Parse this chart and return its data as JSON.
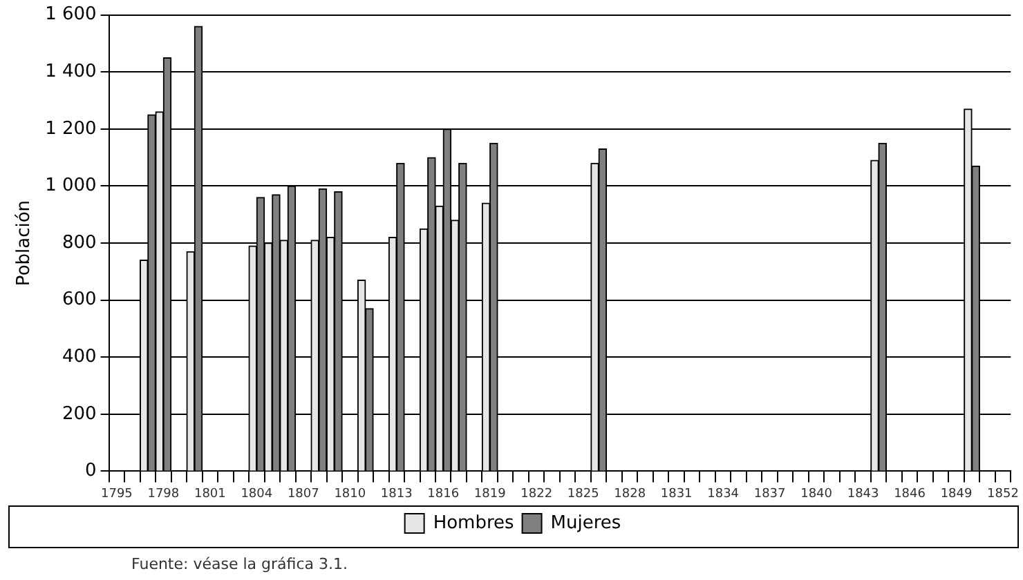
{
  "chart_data": {
    "type": "bar",
    "ylabel": "Población",
    "categories": [
      "1795",
      null,
      null,
      "1798",
      null,
      null,
      "1801",
      null,
      null,
      "1804",
      null,
      null,
      "1807",
      null,
      null,
      "1810",
      null,
      null,
      "1813",
      null,
      null,
      "1816",
      null,
      null,
      "1819",
      null,
      null,
      "1822",
      null,
      null,
      "1825",
      null,
      null,
      "1828",
      null,
      null,
      "1831",
      null,
      null,
      "1834",
      null,
      null,
      "1837",
      null,
      null,
      "1840",
      null,
      null,
      "1843",
      null,
      null,
      "1846",
      null,
      null,
      "1849",
      null,
      null,
      "1852"
    ],
    "series": [
      {
        "name": "Hombres",
        "color": "#e6e6e6",
        "values": [
          null,
          null,
          740,
          1260,
          null,
          770,
          null,
          null,
          null,
          790,
          800,
          810,
          null,
          810,
          820,
          null,
          670,
          null,
          820,
          null,
          850,
          930,
          880,
          null,
          940,
          null,
          null,
          null,
          null,
          null,
          null,
          1080,
          null,
          null,
          null,
          null,
          null,
          null,
          null,
          null,
          null,
          null,
          null,
          null,
          null,
          null,
          null,
          null,
          null,
          1090,
          null,
          null,
          null,
          null,
          null,
          1270,
          null,
          null
        ]
      },
      {
        "name": "Mujeres",
        "color": "#808080",
        "values": [
          null,
          null,
          1250,
          1450,
          null,
          1560,
          null,
          null,
          null,
          960,
          970,
          1000,
          null,
          990,
          980,
          null,
          570,
          null,
          1080,
          null,
          1100,
          1200,
          1080,
          null,
          1150,
          null,
          null,
          null,
          null,
          null,
          null,
          1130,
          null,
          null,
          null,
          null,
          null,
          null,
          null,
          null,
          null,
          null,
          null,
          null,
          null,
          null,
          null,
          null,
          null,
          1150,
          null,
          null,
          null,
          null,
          null,
          1070,
          null,
          null
        ]
      }
    ],
    "ylim": [
      0,
      1600
    ],
    "yticks": [
      0,
      200,
      400,
      600,
      800,
      {
        "value": 1000,
        "label": "1 000"
      },
      {
        "value": 1200,
        "label": "1 200"
      },
      {
        "value": 1400,
        "label": "1 400"
      },
      {
        "value": 1600,
        "label": "1 600"
      }
    ],
    "grid": "y",
    "legend": "bottom",
    "annotations": [
      "Fuente: véase la gráfica 3.1."
    ]
  }
}
